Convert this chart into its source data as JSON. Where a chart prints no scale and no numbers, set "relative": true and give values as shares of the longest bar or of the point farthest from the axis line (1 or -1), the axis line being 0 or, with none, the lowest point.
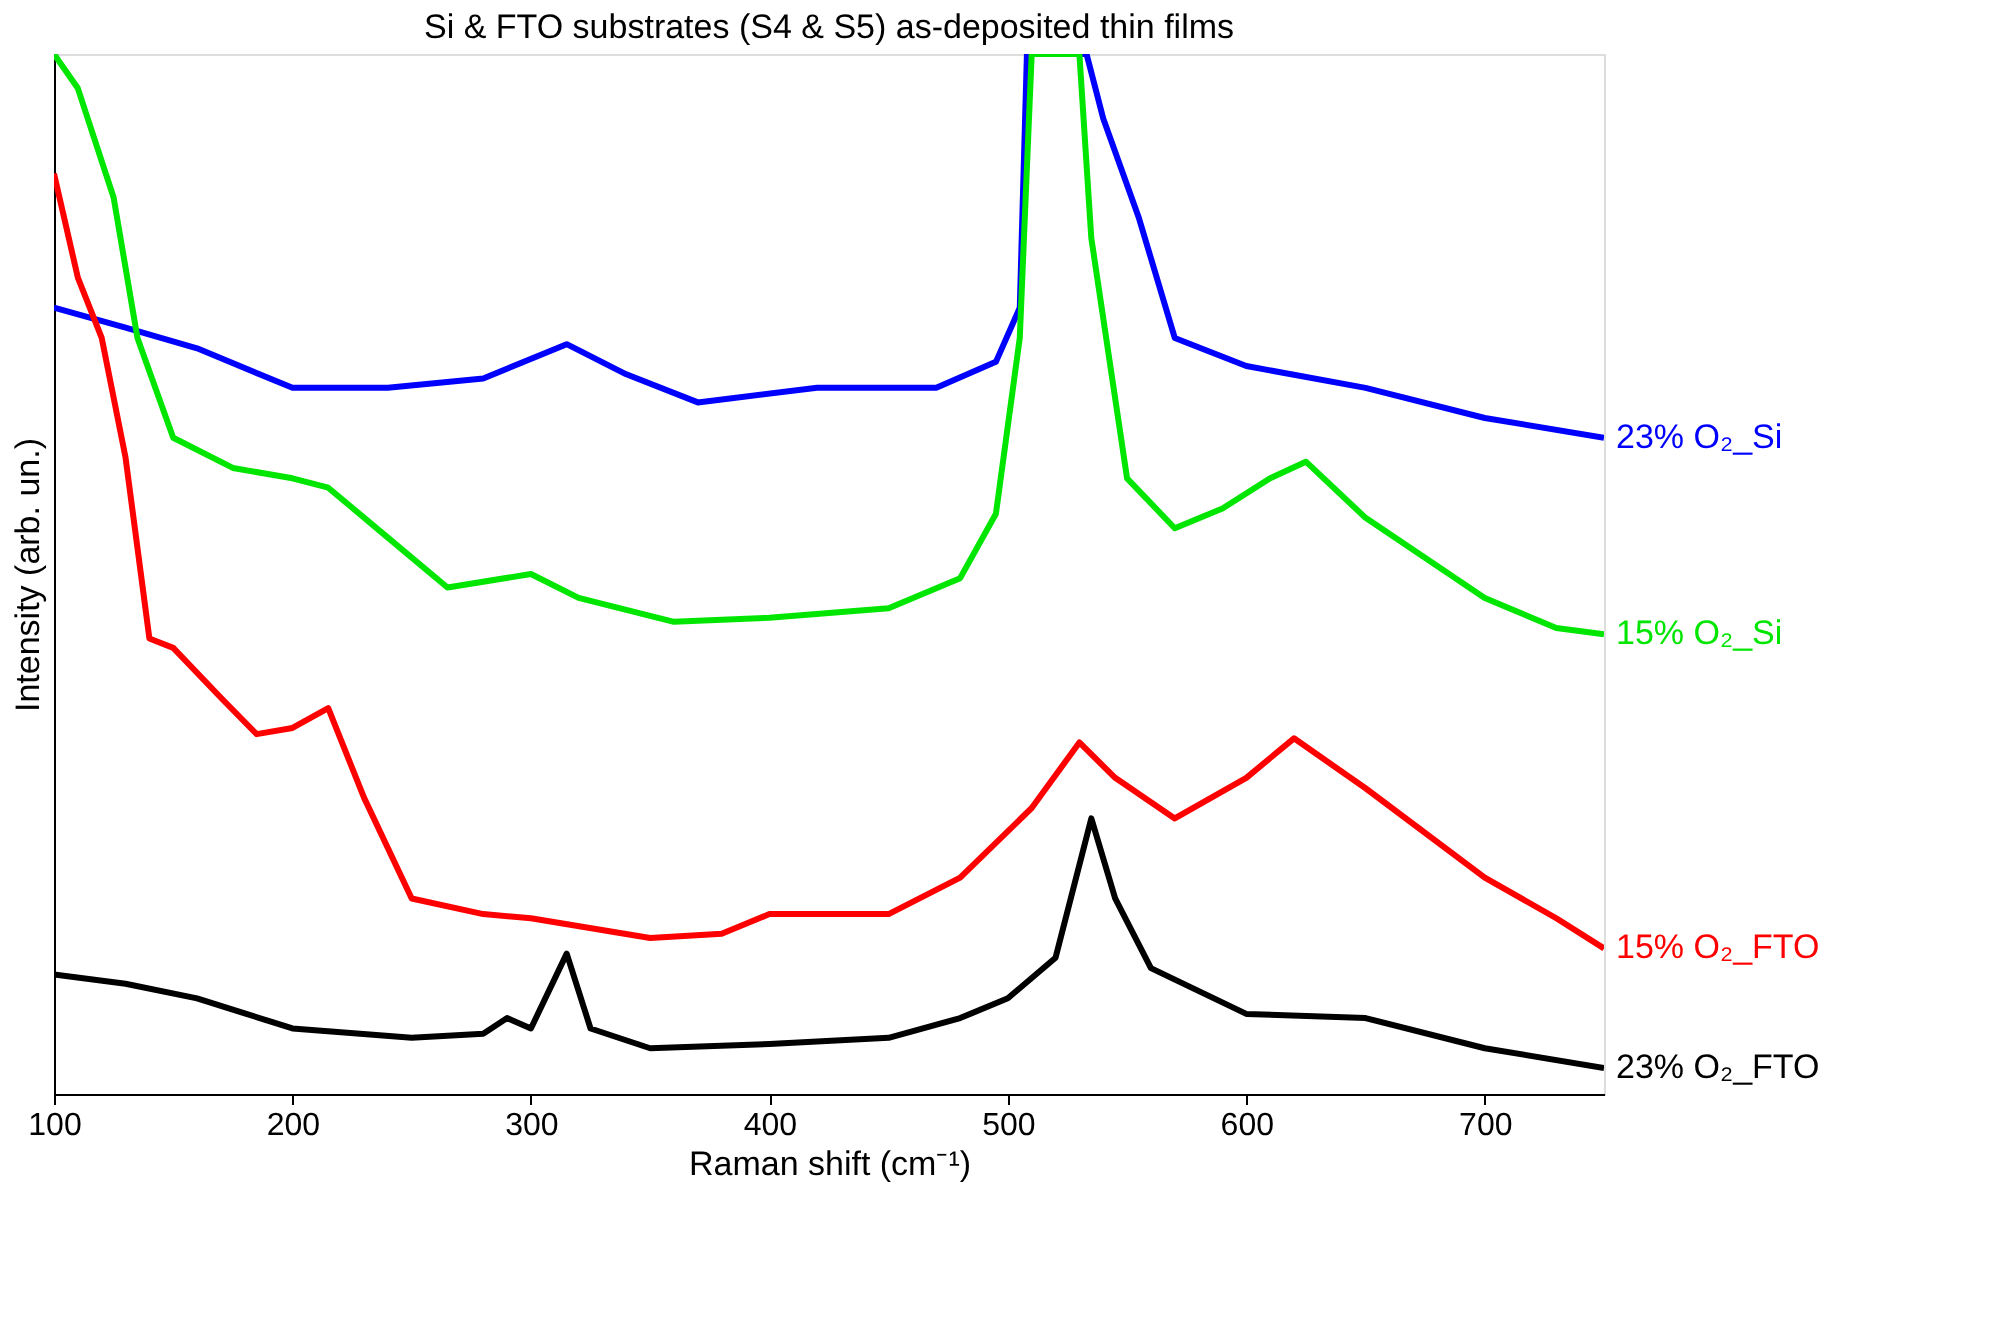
{
  "chart_data": {
    "type": "line",
    "title": "Si & FTO substrates (S4 & S5) as-deposited thin films",
    "xlabel": "Raman shift (cm⁻¹)",
    "ylabel": "Intensity (arb. un.)",
    "relative": true,
    "xlim": [
      100,
      750
    ],
    "xticks": [
      100,
      200,
      300,
      400,
      500,
      600,
      700
    ],
    "grid": false,
    "legend": false,
    "marker": "none",
    "line_style": "solid",
    "series": [
      {
        "name": "23% O₂_Si",
        "color": "#0000ff",
        "x": [
          100,
          130,
          160,
          200,
          240,
          280,
          315,
          340,
          370,
          420,
          470,
          495,
          505,
          508,
          533,
          540,
          555,
          570,
          600,
          650,
          700,
          750
        ],
        "values": [
          0.756,
          0.737,
          0.717,
          0.679,
          0.679,
          0.688,
          0.721,
          0.692,
          0.665,
          0.679,
          0.679,
          0.704,
          0.756,
          1.0,
          1.0,
          0.938,
          0.842,
          0.727,
          0.7,
          0.679,
          0.65,
          0.631
        ]
      },
      {
        "name": "15% O₂_Si",
        "color": "#00e600",
        "x": [
          100,
          110,
          125,
          135,
          150,
          175,
          200,
          215,
          240,
          265,
          300,
          320,
          360,
          400,
          450,
          480,
          495,
          505,
          510,
          530,
          535,
          550,
          570,
          590,
          610,
          625,
          650,
          700,
          730,
          750
        ],
        "values": [
          1.0,
          0.967,
          0.862,
          0.727,
          0.631,
          0.602,
          0.592,
          0.583,
          0.535,
          0.487,
          0.5,
          0.477,
          0.454,
          0.458,
          0.467,
          0.496,
          0.558,
          0.727,
          1.0,
          1.0,
          0.823,
          0.592,
          0.544,
          0.563,
          0.592,
          0.608,
          0.554,
          0.477,
          0.448,
          0.442
        ]
      },
      {
        "name": "15% O₂_FTO",
        "color": "#ff0000",
        "x": [
          100,
          110,
          120,
          130,
          140,
          150,
          170,
          185,
          200,
          215,
          230,
          250,
          280,
          300,
          350,
          380,
          400,
          450,
          480,
          510,
          530,
          545,
          570,
          600,
          620,
          650,
          700,
          730,
          750
        ],
        "values": [
          0.885,
          0.785,
          0.727,
          0.612,
          0.438,
          0.429,
          0.381,
          0.346,
          0.352,
          0.371,
          0.285,
          0.188,
          0.173,
          0.169,
          0.15,
          0.154,
          0.173,
          0.173,
          0.208,
          0.275,
          0.338,
          0.304,
          0.265,
          0.304,
          0.342,
          0.294,
          0.208,
          0.169,
          0.14
        ]
      },
      {
        "name": "23% O₂_FTO",
        "color": "#000000",
        "x": [
          100,
          130,
          160,
          200,
          250,
          280,
          290,
          300,
          315,
          325,
          350,
          400,
          450,
          480,
          500,
          520,
          535,
          545,
          560,
          600,
          650,
          700,
          750
        ],
        "values": [
          0.115,
          0.106,
          0.092,
          0.063,
          0.054,
          0.058,
          0.073,
          0.063,
          0.135,
          0.063,
          0.044,
          0.048,
          0.054,
          0.073,
          0.092,
          0.131,
          0.265,
          0.188,
          0.121,
          0.077,
          0.073,
          0.044,
          0.025
        ]
      }
    ]
  }
}
